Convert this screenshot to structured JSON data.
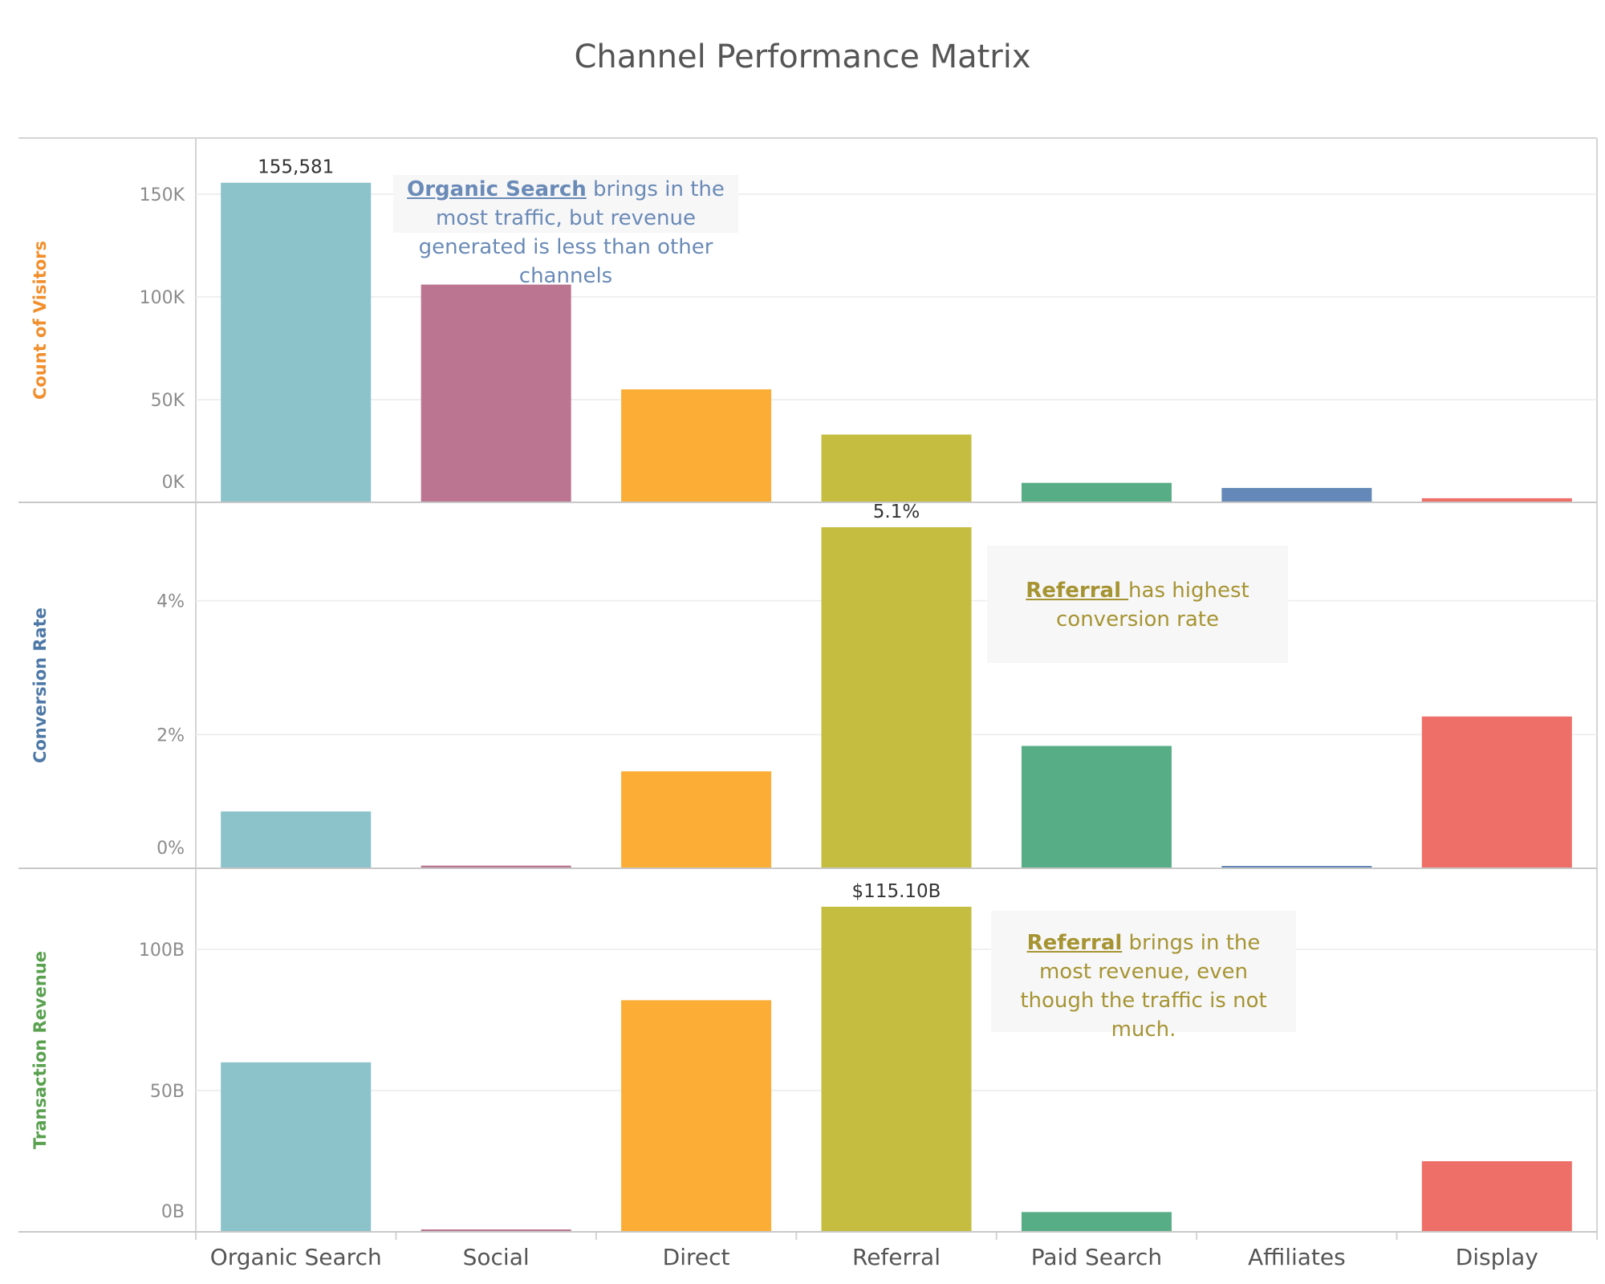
{
  "title": "Channel Performance Matrix",
  "chart_data": {
    "type": "bar",
    "categories": [
      "Organic Search",
      "Social",
      "Direct",
      "Referral",
      "Paid Search",
      "Affiliates",
      "Display"
    ],
    "bar_colors": [
      "#8cc2ca",
      "#bb7590",
      "#fcad35",
      "#c4bd40",
      "#57ad86",
      "#6488b7",
      "#ee6e68"
    ],
    "panels": [
      {
        "ylabel": "Count of Visitors",
        "ylabel_color": "#f28e2b",
        "values": [
          155581,
          106000,
          55000,
          33000,
          9500,
          7000,
          2000
        ],
        "ylim": [
          0,
          175000
        ],
        "ticks": [
          {
            "v": 0,
            "label": "0K"
          },
          {
            "v": 50000,
            "label": "50K"
          },
          {
            "v": 100000,
            "label": "100K"
          },
          {
            "v": 150000,
            "label": "150K"
          }
        ],
        "data_label": {
          "index": 0,
          "text": "155,581"
        }
      },
      {
        "ylabel": "Conversion Rate",
        "ylabel_color": "#4e79a7",
        "values": [
          0.85,
          0.04,
          1.45,
          5.1,
          1.83,
          0.03,
          2.27
        ],
        "ylim": [
          0,
          5.4
        ],
        "ticks": [
          {
            "v": 0,
            "label": "0%"
          },
          {
            "v": 2,
            "label": "2%"
          },
          {
            "v": 4,
            "label": "4%"
          }
        ],
        "data_label": {
          "index": 3,
          "text": "5.1%"
        }
      },
      {
        "ylabel": "Transaction Revenue",
        "ylabel_color": "#59a14f",
        "values": [
          60,
          0.5,
          82,
          115.1,
          7,
          0,
          25
        ],
        "ylim": [
          0,
          127
        ],
        "ticks": [
          {
            "v": 0,
            "label": "0B"
          },
          {
            "v": 50,
            "label": "50B"
          },
          {
            "v": 100,
            "label": "100B"
          }
        ],
        "data_label": {
          "index": 3,
          "text": "$115.10B"
        }
      }
    ],
    "grid": true
  },
  "annotations": [
    {
      "highlight": "Organic Search",
      "text": " brings in the most traffic, but revenue generated is less than other channels",
      "color": "#6a8ab7"
    },
    {
      "highlight": "Referral ",
      "text": "has highest conversion rate",
      "color": "#a69433"
    },
    {
      "highlight": "Referral",
      "text": " brings in the most revenue, even though the traffic is not much.",
      "color": "#a69433"
    }
  ]
}
